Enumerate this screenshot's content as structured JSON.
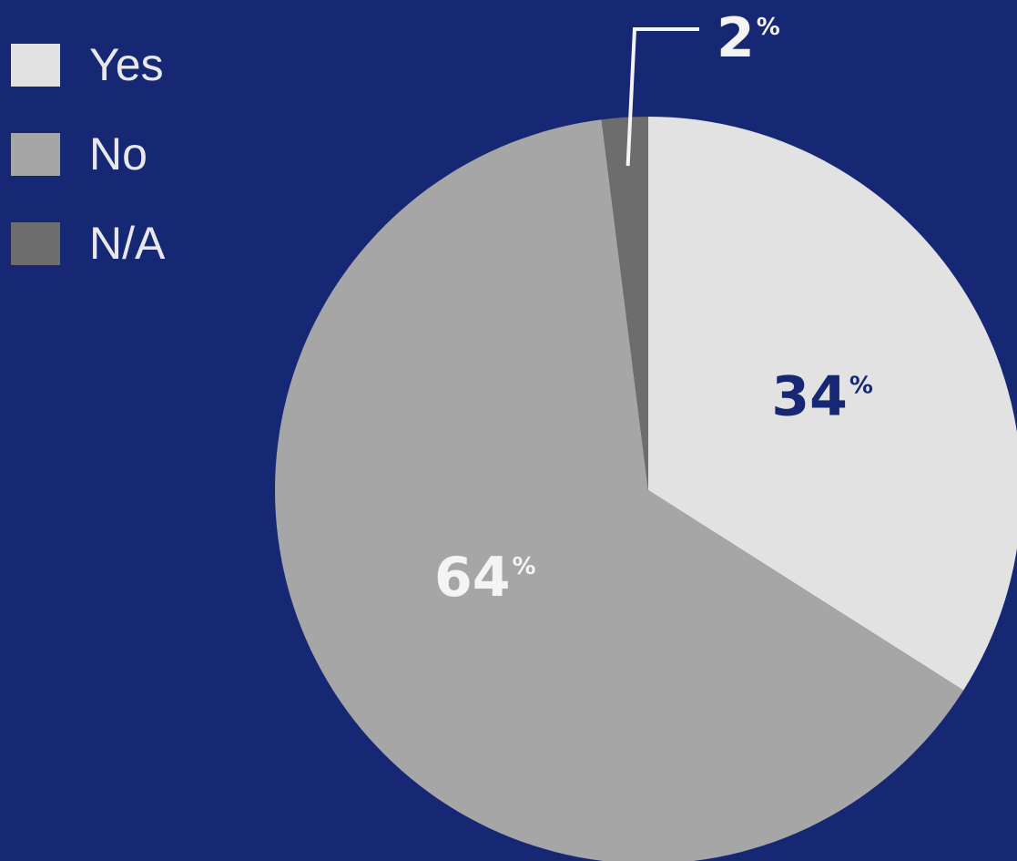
{
  "colors": {
    "background": "#162774",
    "yes": "#e2e2e2",
    "no": "#a6a6a6",
    "na": "#6d6d6d",
    "label_dark": "#162774",
    "label_light": "#f4f4f4"
  },
  "legend": {
    "placement": "top-left",
    "items": [
      {
        "label": "Yes",
        "color": "#e2e2e2"
      },
      {
        "label": "No",
        "color": "#a6a6a6"
      },
      {
        "label": "N/A",
        "color": "#6d6d6d"
      }
    ]
  },
  "chart_data": {
    "type": "pie",
    "title": "",
    "start_angle_deg": 0,
    "direction": "clockwise",
    "slices": [
      {
        "name": "Yes",
        "value": 34,
        "label": "34",
        "unit": "%",
        "color": "#e2e2e2",
        "label_color": "#162774"
      },
      {
        "name": "No",
        "value": 64,
        "label": "64",
        "unit": "%",
        "color": "#a6a6a6",
        "label_color": "#f4f4f4"
      },
      {
        "name": "N/A",
        "value": 2,
        "label": "2",
        "unit": "%",
        "color": "#6d6d6d",
        "label_color": "#f4f4f4",
        "callout": true
      }
    ]
  }
}
